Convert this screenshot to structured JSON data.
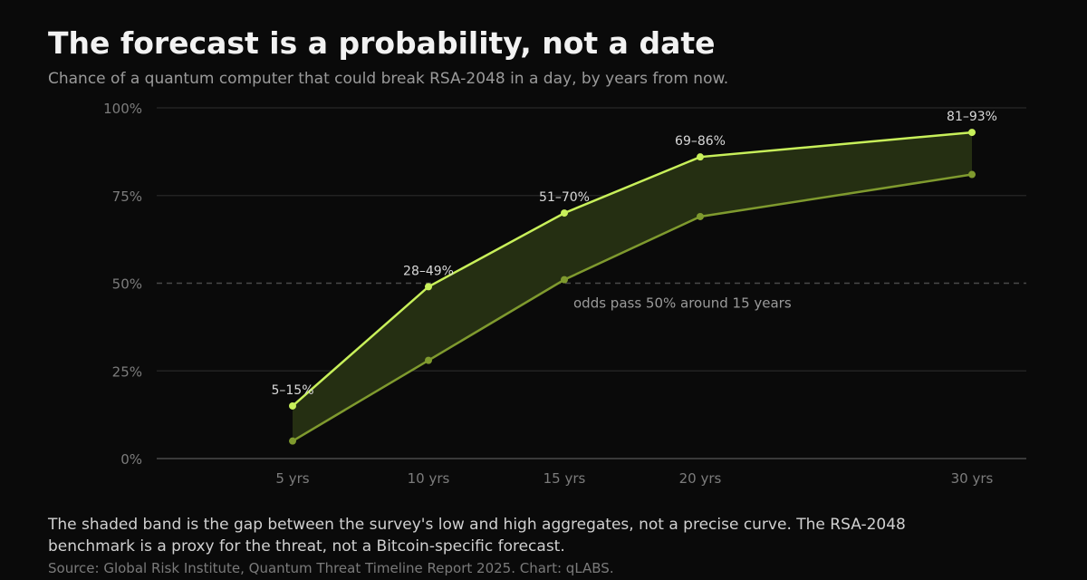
{
  "header": {
    "title": "The forecast is a probability, not a date",
    "subtitle": "Chance of a quantum computer that could break RSA-2048 in a day, by years from now."
  },
  "footer": {
    "note": "The shaded band is the gap between the survey's low and high aggregates, not a precise curve. The RSA-2048 benchmark is a proxy for the threat, not a Bitcoin-specific forecast.",
    "source": "Source: Global Risk Institute, Quantum Threat Timeline Report 2025. Chart: qLABS."
  },
  "colors": {
    "background": "#0a0a0a",
    "high_line": "#c8f05a",
    "low_line": "#7f9a2e",
    "band_fill": "#252f12",
    "grid": "#222222",
    "axis_text": "#7c7c7c",
    "label_text": "#d8d8d8",
    "reference": "#4a4a4a",
    "annotation_text": "#9a9a9a"
  },
  "chart_data": {
    "type": "area",
    "x": [
      5,
      10,
      15,
      20,
      30
    ],
    "x_tick_labels": [
      "5 yrs",
      "10 yrs",
      "15 yrs",
      "20 yrs",
      "30 yrs"
    ],
    "xlim": [
      0,
      32
    ],
    "ylim": [
      0,
      100
    ],
    "y_ticks": [
      0,
      25,
      50,
      75,
      100
    ],
    "y_tick_labels": [
      "0%",
      "25%",
      "50%",
      "75%",
      "100%"
    ],
    "series": [
      {
        "name": "",
        "role": "low",
        "values": [
          5,
          28,
          51,
          69,
          81
        ]
      },
      {
        "name": "",
        "role": "high",
        "values": [
          15,
          49,
          70,
          86,
          93
        ]
      }
    ],
    "point_labels": [
      "5–15%",
      "28–49%",
      "51–70%",
      "69–86%",
      "81–93%"
    ],
    "reference_line": {
      "y": 50,
      "style": "dashed"
    },
    "annotation": "odds pass 50% around 15 years",
    "grid": true,
    "legend": "none"
  }
}
